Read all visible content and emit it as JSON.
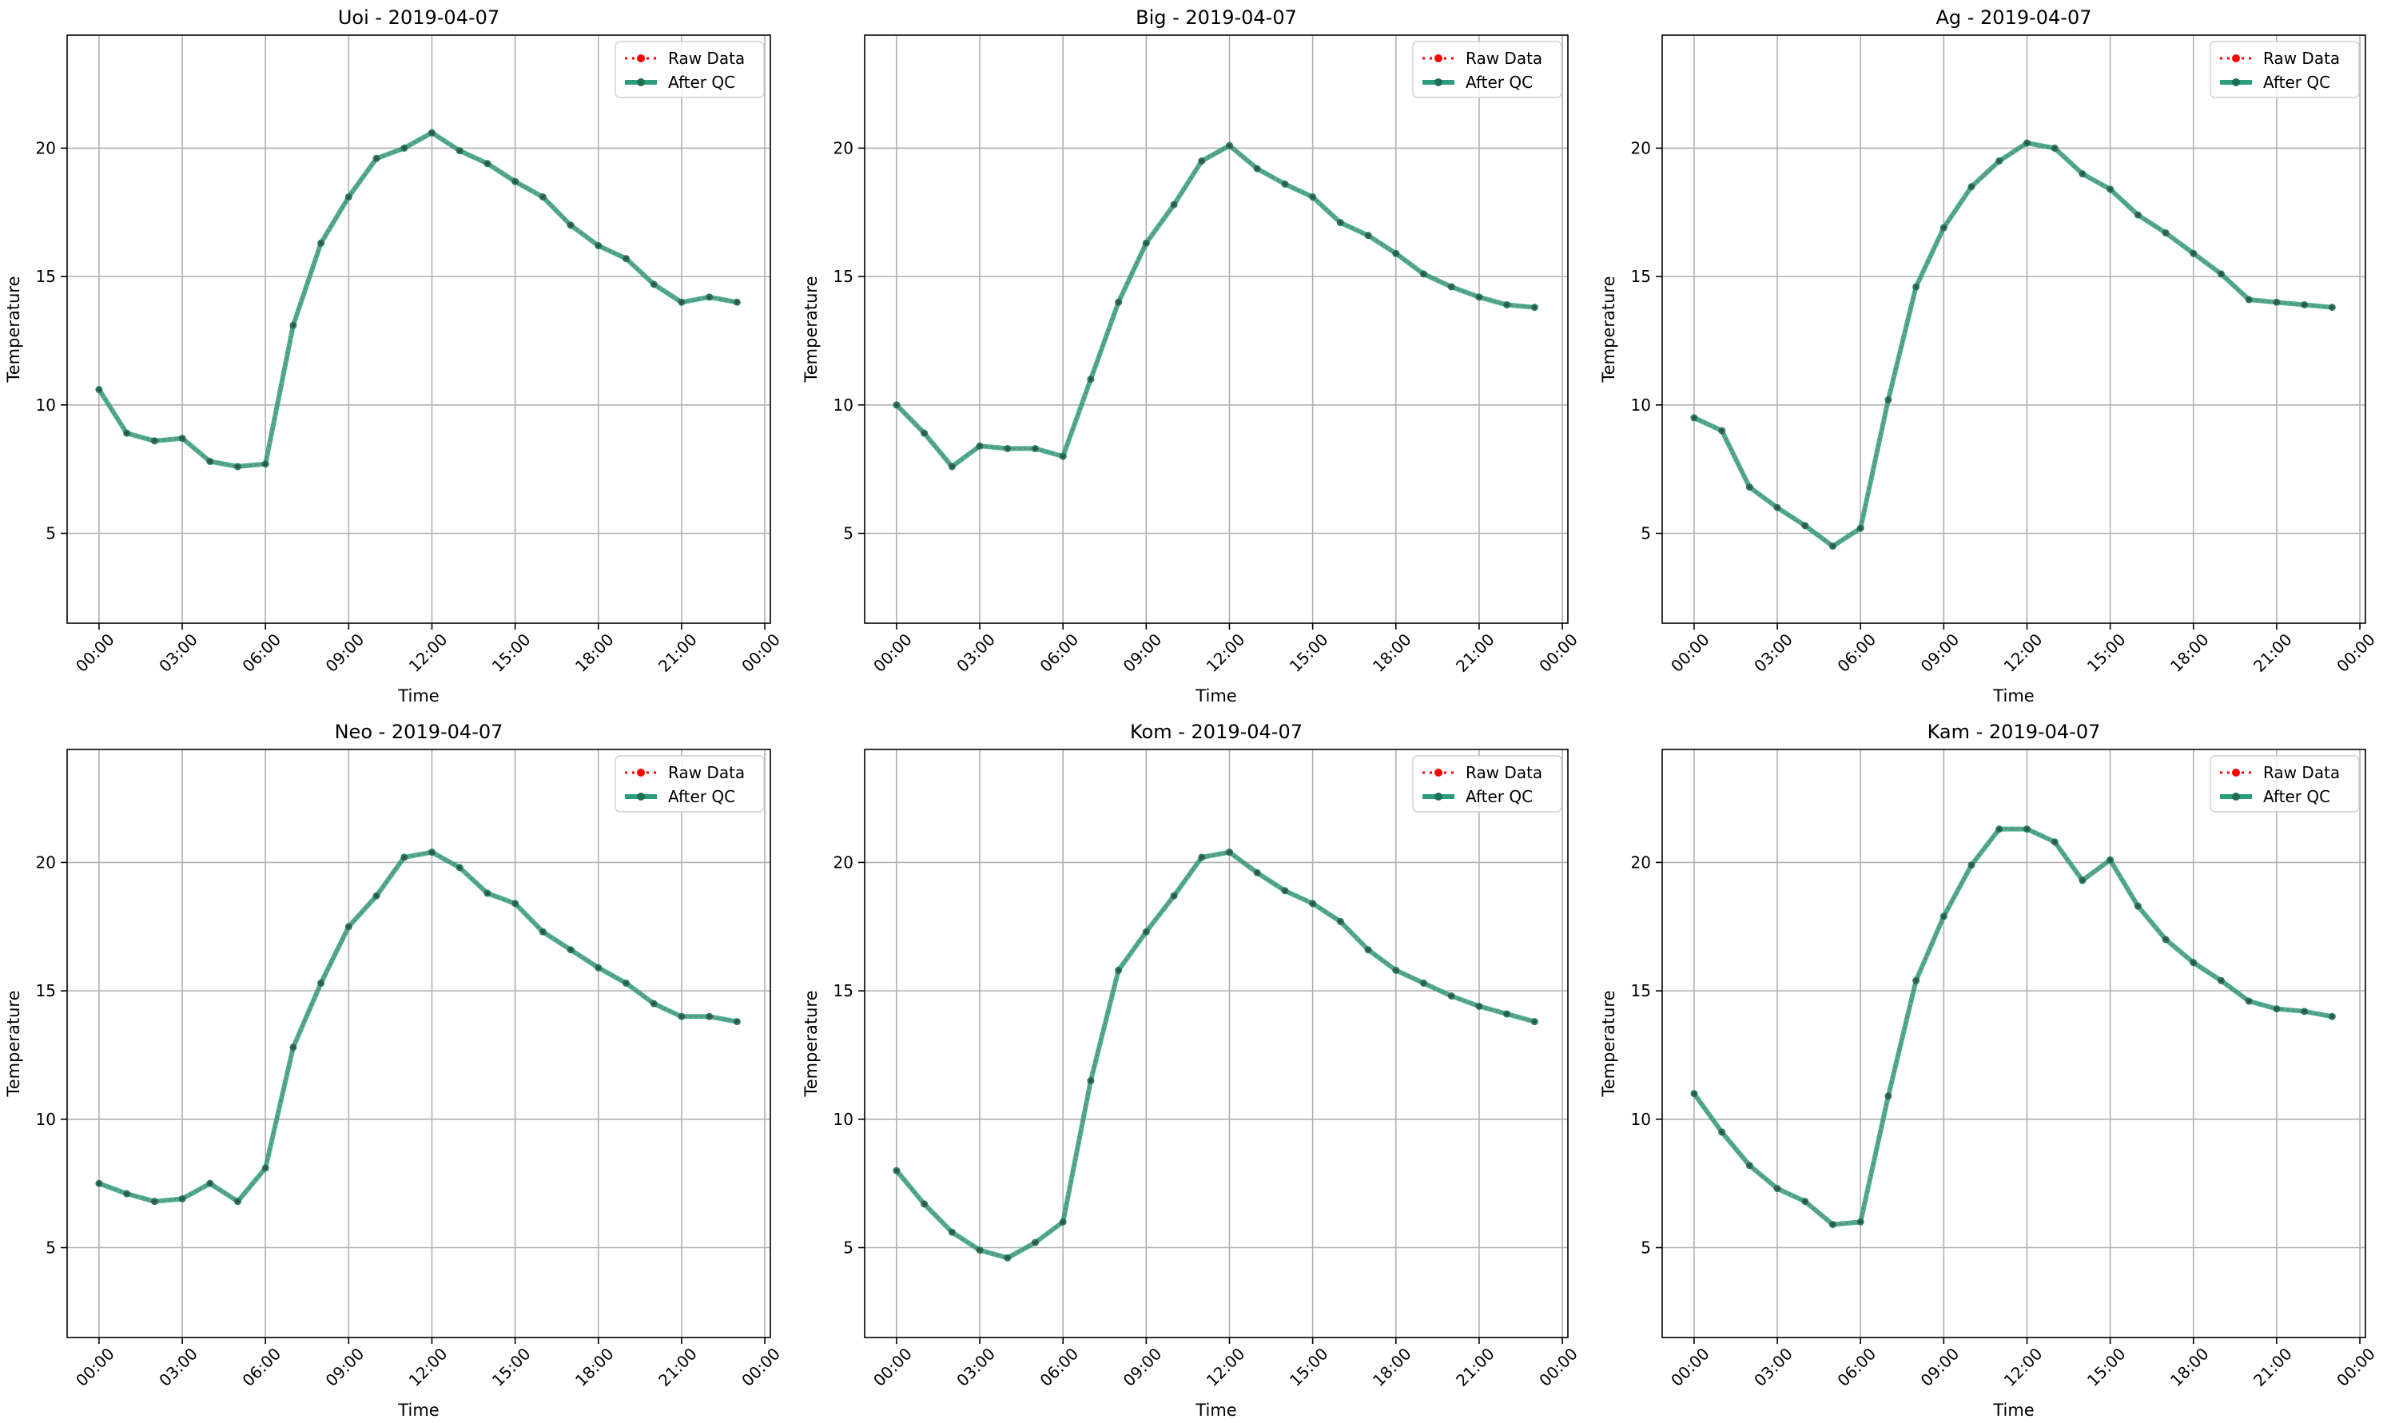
{
  "chart_data": [
    {
      "type": "line",
      "title": "Uoi - 2019-04-07",
      "xlabel": "Time",
      "ylabel": "Temperature",
      "x_ticks": [
        "00:00",
        "03:00",
        "06:00",
        "09:00",
        "12:00",
        "15:00",
        "18:00",
        "21:00",
        "00:00"
      ],
      "y_ticks": [
        "5",
        "10",
        "15",
        "20"
      ],
      "ylim": [
        1.5,
        24.4
      ],
      "grid": true,
      "legend_position": "top-right",
      "hours": [
        0,
        1,
        2,
        3,
        4,
        5,
        6,
        7,
        8,
        9,
        10,
        11,
        12,
        13,
        14,
        15,
        16,
        17,
        18,
        19,
        20,
        21,
        22,
        23
      ],
      "series": [
        {
          "name": "Raw Data",
          "values": [
            10.6,
            8.9,
            8.6,
            8.7,
            7.8,
            7.6,
            7.7,
            13.1,
            16.3,
            18.1,
            19.6,
            20.0,
            20.6,
            19.9,
            19.4,
            18.7,
            18.1,
            17.0,
            16.2,
            15.7,
            14.7,
            14.0,
            14.2,
            14.0
          ]
        },
        {
          "name": "After QC",
          "values": [
            10.6,
            8.9,
            8.6,
            8.7,
            7.8,
            7.6,
            7.7,
            13.1,
            16.3,
            18.1,
            19.6,
            20.0,
            20.6,
            19.9,
            19.4,
            18.7,
            18.1,
            17.0,
            16.2,
            15.7,
            14.7,
            14.0,
            14.2,
            14.0
          ]
        }
      ]
    },
    {
      "type": "line",
      "title": "Big - 2019-04-07",
      "xlabel": "Time",
      "ylabel": "Temperature",
      "x_ticks": [
        "00:00",
        "03:00",
        "06:00",
        "09:00",
        "12:00",
        "15:00",
        "18:00",
        "21:00",
        "00:00"
      ],
      "y_ticks": [
        "5",
        "10",
        "15",
        "20"
      ],
      "ylim": [
        1.5,
        24.4
      ],
      "grid": true,
      "legend_position": "top-right",
      "hours": [
        0,
        1,
        2,
        3,
        4,
        5,
        6,
        7,
        8,
        9,
        10,
        11,
        12,
        13,
        14,
        15,
        16,
        17,
        18,
        19,
        20,
        21,
        22,
        23
      ],
      "series": [
        {
          "name": "Raw Data",
          "values": [
            10.0,
            8.9,
            7.6,
            8.4,
            8.3,
            8.3,
            8.0,
            11.0,
            14.0,
            16.3,
            17.8,
            19.5,
            20.1,
            19.2,
            18.6,
            18.1,
            17.1,
            16.6,
            15.9,
            15.1,
            14.6,
            14.2,
            13.9,
            13.8
          ]
        },
        {
          "name": "After QC",
          "values": [
            10.0,
            8.9,
            7.6,
            8.4,
            8.3,
            8.3,
            8.0,
            11.0,
            14.0,
            16.3,
            17.8,
            19.5,
            20.1,
            19.2,
            18.6,
            18.1,
            17.1,
            16.6,
            15.9,
            15.1,
            14.6,
            14.2,
            13.9,
            13.8
          ]
        }
      ]
    },
    {
      "type": "line",
      "title": "Ag - 2019-04-07",
      "xlabel": "Time",
      "ylabel": "Temperature",
      "x_ticks": [
        "00:00",
        "03:00",
        "06:00",
        "09:00",
        "12:00",
        "15:00",
        "18:00",
        "21:00",
        "00:00"
      ],
      "y_ticks": [
        "5",
        "10",
        "15",
        "20"
      ],
      "ylim": [
        1.5,
        24.4
      ],
      "grid": true,
      "legend_position": "top-right",
      "hours": [
        0,
        1,
        2,
        3,
        4,
        5,
        6,
        7,
        8,
        9,
        10,
        11,
        12,
        13,
        14,
        15,
        16,
        17,
        18,
        19,
        20,
        21,
        22,
        23
      ],
      "series": [
        {
          "name": "Raw Data",
          "values": [
            9.5,
            9.0,
            6.8,
            6.0,
            5.3,
            4.5,
            5.2,
            10.2,
            14.6,
            16.9,
            18.5,
            19.5,
            20.2,
            20.0,
            19.0,
            18.4,
            17.4,
            16.7,
            15.9,
            15.1,
            14.1,
            14.0,
            13.9,
            13.8
          ]
        },
        {
          "name": "After QC",
          "values": [
            9.5,
            9.0,
            6.8,
            6.0,
            5.3,
            4.5,
            5.2,
            10.2,
            14.6,
            16.9,
            18.5,
            19.5,
            20.2,
            20.0,
            19.0,
            18.4,
            17.4,
            16.7,
            15.9,
            15.1,
            14.1,
            14.0,
            13.9,
            13.8
          ]
        }
      ]
    },
    {
      "type": "line",
      "title": "Neo - 2019-04-07",
      "xlabel": "Time",
      "ylabel": "Temperature",
      "x_ticks": [
        "00:00",
        "03:00",
        "06:00",
        "09:00",
        "12:00",
        "15:00",
        "18:00",
        "21:00",
        "00:00"
      ],
      "y_ticks": [
        "5",
        "10",
        "15",
        "20"
      ],
      "ylim": [
        1.5,
        24.4
      ],
      "grid": true,
      "legend_position": "top-right",
      "hours": [
        0,
        1,
        2,
        3,
        4,
        5,
        6,
        7,
        8,
        9,
        10,
        11,
        12,
        13,
        14,
        15,
        16,
        17,
        18,
        19,
        20,
        21,
        22,
        23
      ],
      "series": [
        {
          "name": "Raw Data",
          "values": [
            7.5,
            7.1,
            6.8,
            6.9,
            7.5,
            6.8,
            8.1,
            12.8,
            15.3,
            17.5,
            18.7,
            20.2,
            20.4,
            19.8,
            18.8,
            18.4,
            17.3,
            16.6,
            15.9,
            15.3,
            14.5,
            14.0,
            14.0,
            13.8
          ]
        },
        {
          "name": "After QC",
          "values": [
            7.5,
            7.1,
            6.8,
            6.9,
            7.5,
            6.8,
            8.1,
            12.8,
            15.3,
            17.5,
            18.7,
            20.2,
            20.4,
            19.8,
            18.8,
            18.4,
            17.3,
            16.6,
            15.9,
            15.3,
            14.5,
            14.0,
            14.0,
            13.8
          ]
        }
      ]
    },
    {
      "type": "line",
      "title": "Kom - 2019-04-07",
      "xlabel": "Time",
      "ylabel": "Temperature",
      "x_ticks": [
        "00:00",
        "03:00",
        "06:00",
        "09:00",
        "12:00",
        "15:00",
        "18:00",
        "21:00",
        "00:00"
      ],
      "y_ticks": [
        "5",
        "10",
        "15",
        "20"
      ],
      "ylim": [
        1.5,
        24.4
      ],
      "grid": true,
      "legend_position": "top-right",
      "hours": [
        0,
        1,
        2,
        3,
        4,
        5,
        6,
        7,
        8,
        9,
        10,
        11,
        12,
        13,
        14,
        15,
        16,
        17,
        18,
        19,
        20,
        21,
        22,
        23
      ],
      "series": [
        {
          "name": "Raw Data",
          "values": [
            8.0,
            6.7,
            5.6,
            4.9,
            4.6,
            5.2,
            6.0,
            11.5,
            15.8,
            17.3,
            18.7,
            20.2,
            20.4,
            19.6,
            18.9,
            18.4,
            17.7,
            16.6,
            15.8,
            15.3,
            14.8,
            14.4,
            14.1,
            13.8
          ]
        },
        {
          "name": "After QC",
          "values": [
            8.0,
            6.7,
            5.6,
            4.9,
            4.6,
            5.2,
            6.0,
            11.5,
            15.8,
            17.3,
            18.7,
            20.2,
            20.4,
            19.6,
            18.9,
            18.4,
            17.7,
            16.6,
            15.8,
            15.3,
            14.8,
            14.4,
            14.1,
            13.8
          ]
        }
      ]
    },
    {
      "type": "line",
      "title": "Kam - 2019-04-07",
      "xlabel": "Time",
      "ylabel": "Temperature",
      "x_ticks": [
        "00:00",
        "03:00",
        "06:00",
        "09:00",
        "12:00",
        "15:00",
        "18:00",
        "21:00",
        "00:00"
      ],
      "y_ticks": [
        "5",
        "10",
        "15",
        "20"
      ],
      "ylim": [
        1.5,
        24.4
      ],
      "grid": true,
      "legend_position": "top-right",
      "hours": [
        0,
        1,
        2,
        3,
        4,
        5,
        6,
        7,
        8,
        9,
        10,
        11,
        12,
        13,
        14,
        15,
        16,
        17,
        18,
        19,
        20,
        21,
        22,
        23
      ],
      "series": [
        {
          "name": "Raw Data",
          "values": [
            11.0,
            9.5,
            8.2,
            7.3,
            6.8,
            5.9,
            6.0,
            10.9,
            15.4,
            17.9,
            19.9,
            21.3,
            21.3,
            20.8,
            19.3,
            20.1,
            18.3,
            17.0,
            16.1,
            15.4,
            14.6,
            14.3,
            14.2,
            14.0
          ]
        },
        {
          "name": "After QC",
          "values": [
            11.0,
            9.5,
            8.2,
            7.3,
            6.8,
            5.9,
            6.0,
            10.9,
            15.4,
            17.9,
            19.9,
            21.3,
            21.3,
            20.8,
            19.3,
            20.1,
            18.3,
            17.0,
            16.1,
            15.4,
            14.6,
            14.3,
            14.2,
            14.0
          ]
        }
      ]
    }
  ],
  "colors": {
    "raw": "#ff0000",
    "qc_line": "#2a9d7c",
    "qc_marker": "#1e6f52",
    "grid": "#b0b0b0",
    "axis": "#000000"
  }
}
